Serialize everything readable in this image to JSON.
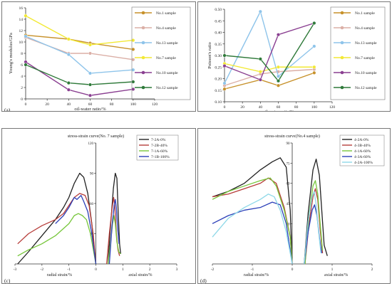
{
  "chart_data": [
    {
      "panel_label": "(a)",
      "type": "line",
      "xlabel": "oil-water ratio/%",
      "ylabel": "Young's modulus/GPa",
      "x": [
        0,
        40,
        60,
        100
      ],
      "xlim": [
        0,
        120
      ],
      "ylim": [
        0,
        16
      ],
      "xticks": [
        0,
        20,
        40,
        60,
        80,
        100,
        120
      ],
      "yticks": [
        0,
        2,
        4,
        6,
        8,
        10,
        12,
        14,
        16
      ],
      "legend_position": "right",
      "series": [
        {
          "name": "No.1 sample",
          "color": "#c7912a",
          "values": [
            11.2,
            10.5,
            9.8,
            8.7
          ]
        },
        {
          "name": "No.4 sample",
          "color": "#dbafa6",
          "values": [
            10.8,
            8.0,
            8.0,
            6.9
          ]
        },
        {
          "name": "No.13 sample",
          "color": "#8ec4ea",
          "values": [
            11.0,
            7.8,
            4.5,
            5.1
          ]
        },
        {
          "name": "No.7 sample",
          "color": "#f2e934",
          "values": [
            14.6,
            10.5,
            9.5,
            10.3
          ]
        },
        {
          "name": "No.10 sample",
          "color": "#8a3f91",
          "values": [
            6.5,
            1.6,
            0.6,
            1.7
          ]
        },
        {
          "name": "No.12 sample",
          "color": "#2f7a3a",
          "values": [
            6.0,
            2.8,
            2.5,
            3.0
          ]
        }
      ]
    },
    {
      "panel_label": "(b)",
      "type": "line",
      "xlabel": "oil-water ratio/%",
      "ylabel": "Poisson's ratio",
      "x": [
        0,
        40,
        60,
        100
      ],
      "xlim": [
        0,
        120
      ],
      "ylim": [
        0.1,
        0.5
      ],
      "xticks": [
        0,
        20,
        40,
        60,
        80,
        100,
        120
      ],
      "yticks": [
        0.1,
        0.15,
        0.2,
        0.25,
        0.3,
        0.35,
        0.4,
        0.45,
        0.5
      ],
      "legend_position": "right",
      "series": [
        {
          "name": "No.1 sample",
          "color": "#c7912a",
          "values": [
            0.155,
            0.195,
            0.17,
            0.225
          ]
        },
        {
          "name": "No.4 sample",
          "color": "#dbafa6",
          "values": [
            0.17,
            0.22,
            0.23,
            0.24
          ]
        },
        {
          "name": "No.13 sample",
          "color": "#8ec4ea",
          "values": [
            0.18,
            0.49,
            0.21,
            0.34
          ]
        },
        {
          "name": "No.7 sample",
          "color": "#f2e934",
          "values": [
            0.265,
            0.23,
            0.25,
            0.25
          ]
        },
        {
          "name": "No.10 sample",
          "color": "#8a3f91",
          "values": [
            0.255,
            0.195,
            0.39,
            0.44
          ]
        },
        {
          "name": "No.12 sample",
          "color": "#2f7a3a",
          "values": [
            0.3,
            0.285,
            0.19,
            0.44
          ]
        }
      ]
    },
    {
      "panel_label": "(c)",
      "type": "line",
      "title": "stress-strain curve(No. 7 sample)",
      "xlabel_left": "radial strain/%",
      "xlabel_right": "axial strain/%",
      "xlim": [
        -3,
        3
      ],
      "ylim": [
        0,
        120
      ],
      "xticks": [
        -3,
        -2,
        -1,
        0,
        1,
        2,
        3
      ],
      "yticks": [
        30,
        60,
        90,
        120
      ],
      "legend_position": "top-right",
      "series": [
        {
          "name": "7-2A-0%",
          "color": "#222222",
          "radial": [
            [
              -2.9,
              0
            ],
            [
              -2.5,
              12
            ],
            [
              -2.0,
              28
            ],
            [
              -1.5,
              44
            ],
            [
              -1.2,
              56
            ],
            [
              -1.0,
              66
            ],
            [
              -0.8,
              80
            ],
            [
              -0.6,
              90
            ],
            [
              -0.45,
              86
            ],
            [
              -0.3,
              70
            ],
            [
              -0.15,
              40
            ],
            [
              0,
              0
            ]
          ],
          "axial": [
            [
              0.45,
              0
            ],
            [
              0.55,
              40
            ],
            [
              0.65,
              75
            ],
            [
              0.72,
              90
            ],
            [
              0.78,
              85
            ],
            [
              0.83,
              50
            ],
            [
              0.88,
              20
            ],
            [
              0.92,
              10
            ]
          ]
        },
        {
          "name": "7-2B-40%",
          "color": "#b73d3a",
          "radial": [
            [
              -2.9,
              20
            ],
            [
              -2.5,
              30
            ],
            [
              -2.0,
              38
            ],
            [
              -1.5,
              44
            ],
            [
              -1.2,
              50
            ],
            [
              -1.0,
              58
            ],
            [
              -0.8,
              66
            ],
            [
              -0.6,
              70
            ],
            [
              -0.4,
              68
            ],
            [
              -0.25,
              58
            ],
            [
              -0.1,
              30
            ],
            [
              0,
              0
            ]
          ],
          "axial": [
            [
              0.4,
              0
            ],
            [
              0.5,
              30
            ],
            [
              0.6,
              55
            ],
            [
              0.66,
              66
            ],
            [
              0.7,
              58
            ],
            [
              0.76,
              30
            ],
            [
              0.82,
              14
            ],
            [
              0.88,
              8
            ]
          ]
        },
        {
          "name": "7-1A-60%",
          "color": "#76c63a",
          "radial": [
            [
              -2.9,
              8
            ],
            [
              -2.5,
              14
            ],
            [
              -2.0,
              20
            ],
            [
              -1.5,
              28
            ],
            [
              -1.0,
              40
            ],
            [
              -0.8,
              48
            ],
            [
              -0.65,
              50
            ],
            [
              -0.5,
              48
            ],
            [
              -0.35,
              44
            ],
            [
              -0.2,
              30
            ],
            [
              0,
              0
            ]
          ],
          "axial": [
            [
              0.45,
              0
            ],
            [
              0.55,
              22
            ],
            [
              0.62,
              40
            ],
            [
              0.67,
              48
            ],
            [
              0.72,
              40
            ],
            [
              0.78,
              22
            ],
            [
              0.85,
              12
            ],
            [
              0.92,
              10
            ]
          ]
        },
        {
          "name": "7-1B-100%",
          "color": "#2b3fb8",
          "radial": [
            [
              -1.5,
              40
            ],
            [
              -1.2,
              48
            ],
            [
              -1.0,
              56
            ],
            [
              -0.8,
              66
            ],
            [
              -0.7,
              64
            ],
            [
              -0.55,
              68
            ],
            [
              -0.45,
              62
            ],
            [
              -0.3,
              52
            ],
            [
              -0.15,
              30
            ],
            [
              0,
              0
            ]
          ],
          "axial": [
            [
              0.5,
              0
            ],
            [
              0.6,
              38
            ],
            [
              0.68,
              58
            ],
            [
              0.72,
              64
            ],
            [
              0.76,
              56
            ],
            [
              0.8,
              38
            ],
            [
              0.86,
              20
            ]
          ]
        }
      ]
    },
    {
      "panel_label": "(d)",
      "type": "line",
      "title": "stress-strain curve(No.4 sample)",
      "xlabel_left": "radial strain/%",
      "xlabel_right": "axial strain/%",
      "xlim": [
        -2,
        2
      ],
      "ylim": [
        0,
        90
      ],
      "xticks": [
        -2,
        -1,
        0,
        1,
        2
      ],
      "yticks": [
        30,
        45,
        60,
        75,
        90
      ],
      "legend_position": "top-right",
      "series": [
        {
          "name": "4-2A-0%",
          "color": "#222222",
          "radial": [
            [
              -2.0,
              50
            ],
            [
              -1.6,
              54
            ],
            [
              -1.2,
              60
            ],
            [
              -0.8,
              70
            ],
            [
              -0.5,
              76
            ],
            [
              -0.3,
              79
            ],
            [
              -0.15,
              72
            ],
            [
              -0.05,
              40
            ],
            [
              0,
              0
            ]
          ],
          "axial": [
            [
              0.3,
              0
            ],
            [
              0.4,
              38
            ],
            [
              0.52,
              70
            ],
            [
              0.6,
              78
            ],
            [
              0.68,
              66
            ],
            [
              0.74,
              40
            ],
            [
              0.8,
              14
            ],
            [
              0.88,
              6
            ]
          ]
        },
        {
          "name": "4-3B-40%",
          "color": "#b73d3a",
          "radial": [
            [
              -2.0,
              50
            ],
            [
              -1.6,
              52
            ],
            [
              -1.2,
              56
            ],
            [
              -0.8,
              60
            ],
            [
              -0.6,
              64
            ],
            [
              -0.4,
              60
            ],
            [
              -0.2,
              42
            ],
            [
              -0.05,
              20
            ],
            [
              0,
              0
            ]
          ],
          "axial": [
            [
              0.32,
              0
            ],
            [
              0.42,
              30
            ],
            [
              0.52,
              50
            ],
            [
              0.58,
              56
            ],
            [
              0.64,
              48
            ],
            [
              0.7,
              26
            ],
            [
              0.76,
              8
            ]
          ]
        },
        {
          "name": "4-1A-60%",
          "color": "#76c63a",
          "radial": [
            [
              -2.0,
              48
            ],
            [
              -1.6,
              54
            ],
            [
              -1.2,
              58
            ],
            [
              -0.8,
              62
            ],
            [
              -0.55,
              64
            ],
            [
              -0.4,
              58
            ],
            [
              -0.2,
              40
            ],
            [
              -0.05,
              20
            ],
            [
              0,
              0
            ]
          ],
          "axial": [
            [
              0.32,
              0
            ],
            [
              0.42,
              36
            ],
            [
              0.52,
              58
            ],
            [
              0.58,
              62
            ],
            [
              0.64,
              52
            ],
            [
              0.7,
              30
            ],
            [
              0.76,
              10
            ]
          ]
        },
        {
          "name": "4-3A-60%",
          "color": "#2b3fb8",
          "radial": [
            [
              -2.0,
              30
            ],
            [
              -1.6,
              36
            ],
            [
              -1.2,
              40
            ],
            [
              -0.8,
              42
            ],
            [
              -0.5,
              46
            ],
            [
              -0.3,
              44
            ],
            [
              -0.15,
              30
            ],
            [
              0,
              0
            ]
          ],
          "axial": [
            [
              0.3,
              0
            ],
            [
              0.4,
              24
            ],
            [
              0.5,
              40
            ],
            [
              0.56,
              44
            ],
            [
              0.62,
              36
            ],
            [
              0.68,
              20
            ],
            [
              0.74,
              8
            ]
          ]
        },
        {
          "name": "4-2A-100%",
          "color": "#8ed8e8",
          "radial": [
            [
              -2.0,
              20
            ],
            [
              -1.6,
              34
            ],
            [
              -1.2,
              42
            ],
            [
              -0.8,
              48
            ],
            [
              -0.6,
              52
            ],
            [
              -0.45,
              50
            ],
            [
              -0.3,
              40
            ],
            [
              -0.15,
              24
            ],
            [
              0,
              0
            ]
          ],
          "axial": [
            [
              0.3,
              0
            ],
            [
              0.4,
              32
            ],
            [
              0.5,
              50
            ],
            [
              0.55,
              54
            ],
            [
              0.6,
              44
            ],
            [
              0.66,
              24
            ],
            [
              0.72,
              8
            ]
          ]
        }
      ]
    }
  ]
}
